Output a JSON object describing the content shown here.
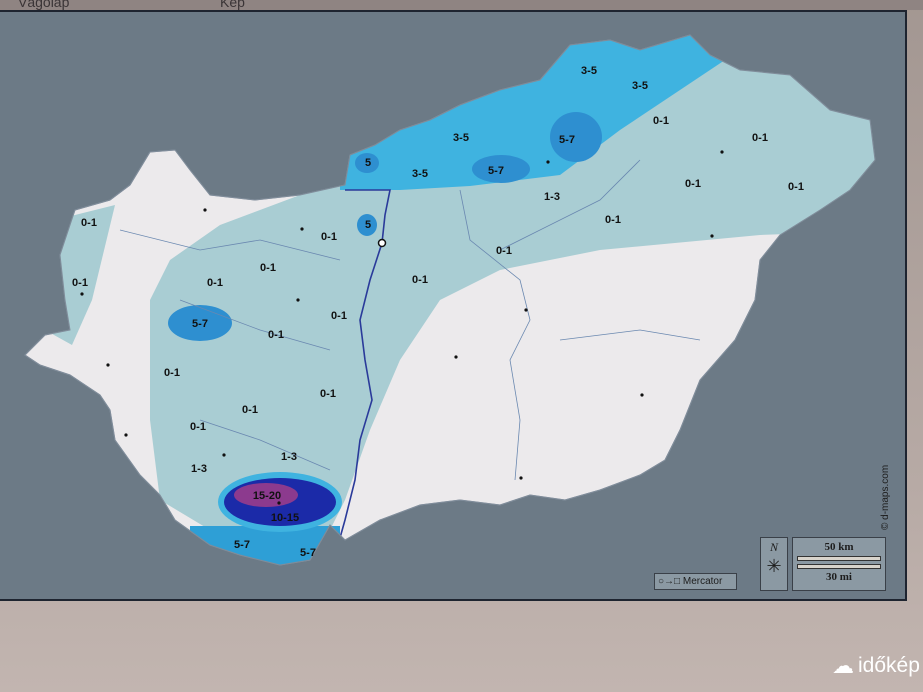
{
  "window": {
    "tabs": [
      "Vágólap",
      "Kép"
    ]
  },
  "map": {
    "colors": {
      "background": "#6c7a86",
      "land": "#eceaec",
      "zone_0_1": "#a9cdd3",
      "zone_3_5": "#3fb3e0",
      "zone_5_7": "#2e9fd6",
      "zone_10_15": "#1b2aa8",
      "zone_15_20": "#8c3a8e",
      "river": "#2a4a9a"
    },
    "labels": [
      "3-5",
      "3-5",
      "0-1",
      "0-1",
      "3-5",
      "5-7",
      "5",
      "3-5",
      "5-7",
      "0-1",
      "0-1",
      "1-3",
      "0-1",
      "0-1",
      "5",
      "0-1",
      "0-1",
      "0-1",
      "0-1",
      "0-1",
      "0-1",
      "0-1",
      "5-7",
      "0-1",
      "0-1",
      "0-1",
      "0-1",
      "0-1",
      "1-3",
      "1-3",
      "15-20",
      "10-15",
      "5-7",
      "5-7"
    ],
    "projection": "Mercator",
    "north": "N",
    "scale_km": "50 km",
    "scale_mi": "30 mi",
    "credit": "© d-maps.com"
  },
  "watermark": {
    "brand": "időkép"
  }
}
